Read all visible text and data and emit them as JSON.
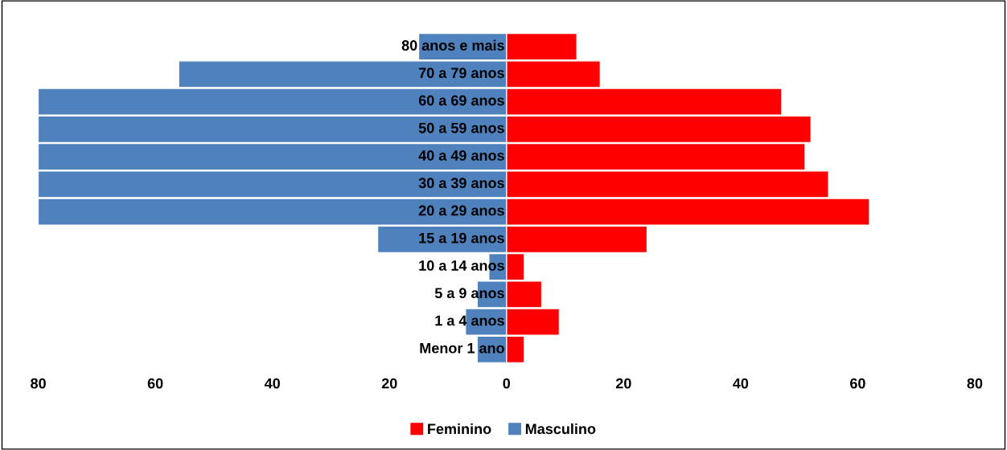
{
  "chart_data": {
    "type": "bar",
    "orientation": "horizontal",
    "stacked": true,
    "categories": [
      "80 anos e mais",
      "70 a 79 anos",
      "60 a 69 anos",
      "50 a 59 anos",
      "40 a 49 anos",
      "30 a 39 anos",
      "20 a 29 anos",
      "15 a 19 anos",
      "10 a 14 anos",
      "5 a 9 anos",
      "1 a 4 anos",
      "Menor 1 ano"
    ],
    "series": [
      {
        "name": "Feminino",
        "color": "#ff0000",
        "values": [
          12,
          16,
          47,
          52,
          51,
          55,
          62,
          24,
          3,
          6,
          9,
          3
        ]
      },
      {
        "name": "Masculino",
        "color": "#4f81bd",
        "values": [
          -15,
          -56,
          -80,
          -80,
          -80,
          -80,
          -80,
          -22,
          -3,
          -5,
          -7,
          -5
        ]
      }
    ],
    "xlim": [
      -80,
      80
    ],
    "xticks": [
      {
        "value": -80,
        "label": "80"
      },
      {
        "value": -60,
        "label": "60"
      },
      {
        "value": -40,
        "label": "40"
      },
      {
        "value": -20,
        "label": "20"
      },
      0,
      20,
      40,
      60,
      80
    ],
    "legend": "bottom",
    "grid": false
  }
}
